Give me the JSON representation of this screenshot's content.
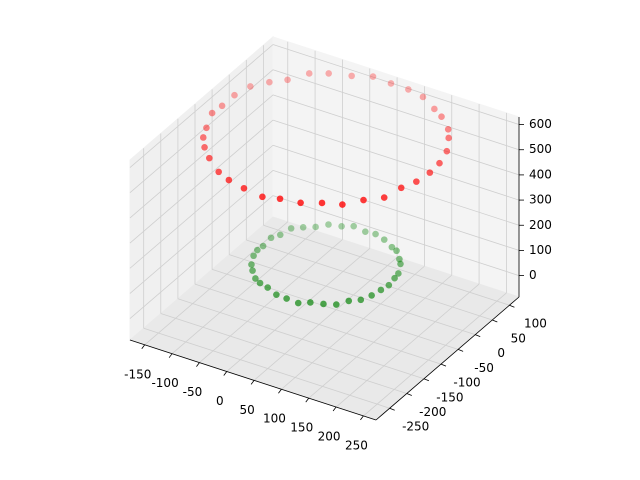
{
  "chart_data": {
    "type": "scatter3d",
    "xlim": [
      -177,
      273
    ],
    "ylim": [
      -290,
      128
    ],
    "zlim": [
      -85,
      630
    ],
    "xticks": [
      -150,
      -100,
      -50,
      0,
      50,
      100,
      150,
      200,
      250
    ],
    "yticks": [
      -250,
      -200,
      -150,
      -100,
      -50,
      0,
      50,
      100
    ],
    "zticks": [
      0,
      100,
      200,
      300,
      400,
      500,
      600
    ],
    "grid": true,
    "series": [
      {
        "color": "#ff0000",
        "x": [
          190,
          187,
          181,
          165,
          146,
          120,
          95,
          66,
          33,
          0,
          -31,
          -65,
          -97,
          -122,
          -146,
          -163,
          -179,
          -188,
          -190,
          -187,
          -178,
          -165,
          -147,
          -122,
          -93,
          -65,
          -33,
          2,
          33,
          65,
          96,
          122,
          145,
          166,
          179,
          186
        ],
        "y": [
          0,
          33,
          64,
          95,
          124,
          146,
          165,
          178,
          188,
          190,
          187,
          179,
          163,
          146,
          121,
          95,
          65,
          33,
          0,
          -34,
          -65,
          -95,
          -120,
          -146,
          -165,
          -180,
          -187,
          -189,
          -187,
          -178,
          -165,
          -147,
          -122,
          -95,
          -66,
          -33
        ],
        "z": [
          500,
          497,
          504,
          509,
          496,
          502,
          493,
          505,
          500,
          498,
          507,
          495,
          501,
          503,
          490,
          499,
          506,
          502,
          497,
          510,
          494,
          500,
          503,
          508,
          496,
          501,
          499,
          492,
          504,
          500,
          506,
          497,
          502,
          495,
          509,
          500
        ]
      },
      {
        "color": "#008000",
        "x": [
          115,
          113,
          108,
          100,
          88,
          74,
          58,
          39,
          20,
          0,
          -20,
          -39,
          -58,
          -74,
          -88,
          -100,
          -108,
          -113,
          -115,
          -113,
          -108,
          -100,
          -88,
          -74,
          -58,
          -39,
          -20,
          0,
          20,
          39,
          58,
          74,
          88,
          100,
          108,
          113
        ],
        "y": [
          0,
          20,
          39,
          58,
          74,
          88,
          100,
          108,
          113,
          115,
          113,
          108,
          100,
          88,
          74,
          58,
          39,
          20,
          0,
          -20,
          -39,
          -58,
          -74,
          -88,
          -100,
          -108,
          -113,
          -115,
          -113,
          -108,
          -100,
          -88,
          -74,
          -58,
          -39,
          -20
        ],
        "z": [
          0,
          3,
          -4,
          6,
          -2,
          5,
          -6,
          1,
          4,
          -3,
          7,
          -1,
          2,
          -5,
          0,
          6,
          -3,
          4,
          -7,
          2,
          5,
          -2,
          1,
          -4,
          3,
          8,
          -1,
          0,
          -6,
          4,
          2,
          -3,
          5,
          -1,
          0,
          3
        ]
      }
    ]
  }
}
